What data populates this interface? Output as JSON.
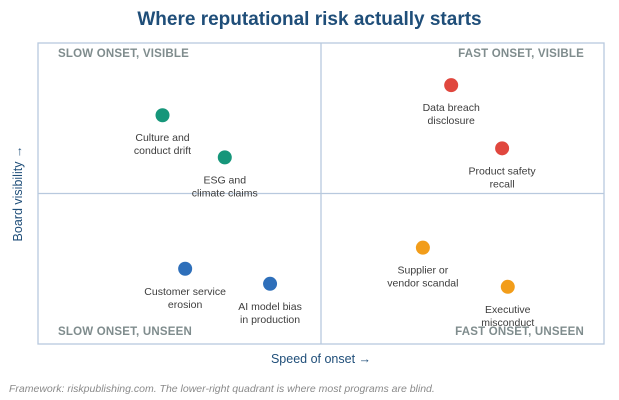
{
  "chart_data": {
    "type": "scatter",
    "title": "Where reputational risk actually starts",
    "xlabel": "Speed of onset →",
    "ylabel": "Board visibility →",
    "xlim": [
      0,
      10
    ],
    "ylim": [
      0,
      10
    ],
    "grid": false,
    "quadrants": [
      {
        "label": "SLOW ONSET, VISIBLE",
        "position": "top-left"
      },
      {
        "label": "FAST ONSET, VISIBLE",
        "position": "top-right"
      },
      {
        "label": "SLOW ONSET, UNSEEN",
        "position": "bottom-left"
      },
      {
        "label": "FAST ONSET, UNSEEN",
        "position": "bottom-right"
      }
    ],
    "points": [
      {
        "label": [
          "Culture and",
          "conduct drift"
        ],
        "x": 2.2,
        "y": 7.6,
        "color": "#16967a"
      },
      {
        "label": [
          "ESG and",
          "climate claims"
        ],
        "x": 3.3,
        "y": 6.2,
        "color": "#16967a"
      },
      {
        "label": [
          "Data breach",
          "disclosure"
        ],
        "x": 7.3,
        "y": 8.6,
        "color": "#e0473e"
      },
      {
        "label": [
          "Product safety",
          "recall"
        ],
        "x": 8.2,
        "y": 6.5,
        "color": "#e0473e"
      },
      {
        "label": [
          "Customer service",
          "erosion"
        ],
        "x": 2.6,
        "y": 2.5,
        "color": "#2e6fba"
      },
      {
        "label": [
          "AI model bias",
          "in production"
        ],
        "x": 4.1,
        "y": 2.0,
        "color": "#2e6fba"
      },
      {
        "label": [
          "Supplier or",
          "vendor scandal"
        ],
        "x": 6.8,
        "y": 3.2,
        "color": "#f29d1a"
      },
      {
        "label": [
          "Executive",
          "misconduct"
        ],
        "x": 8.3,
        "y": 1.9,
        "color": "#f29d1a"
      }
    ],
    "colors": {
      "frame": "#b8c9de",
      "title": "#1f4e79",
      "quadrant_label": "#7f8c8d"
    }
  },
  "footnote": "Framework: riskpublishing.com. The lower-right quadrant is where most programs are blind."
}
